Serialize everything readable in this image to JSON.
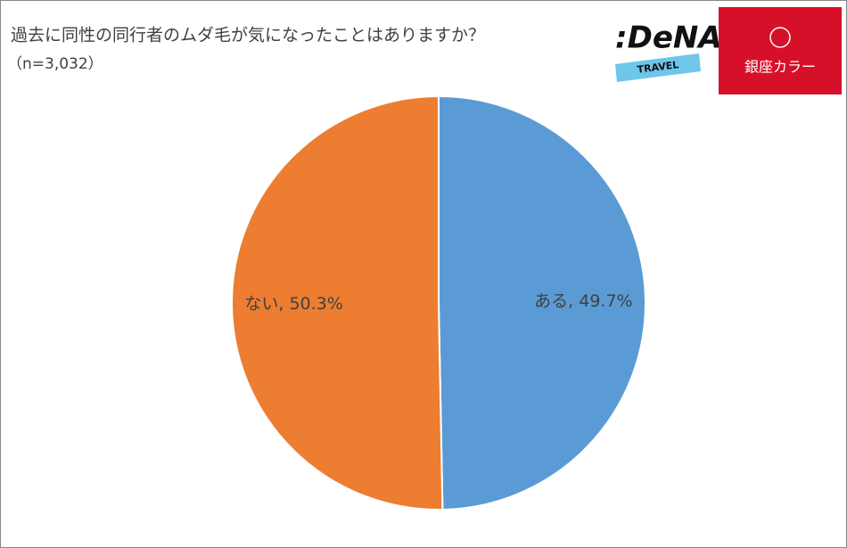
{
  "chart_data": {
    "type": "pie",
    "title": "過去に同性の同行者のムダ毛が気になったことはありますか？",
    "subtitle": "（n=3,032）",
    "values": [
      49.7,
      50.3
    ],
    "value_labels": [
      "ある, 49.7%",
      "ない, 50.3%"
    ],
    "colors": [
      "#5b9bd5",
      "#ed7d31"
    ]
  },
  "logos": {
    "dena": ":DeNA",
    "dena_sub": "TRAVEL",
    "ginza": "銀座カラー"
  }
}
